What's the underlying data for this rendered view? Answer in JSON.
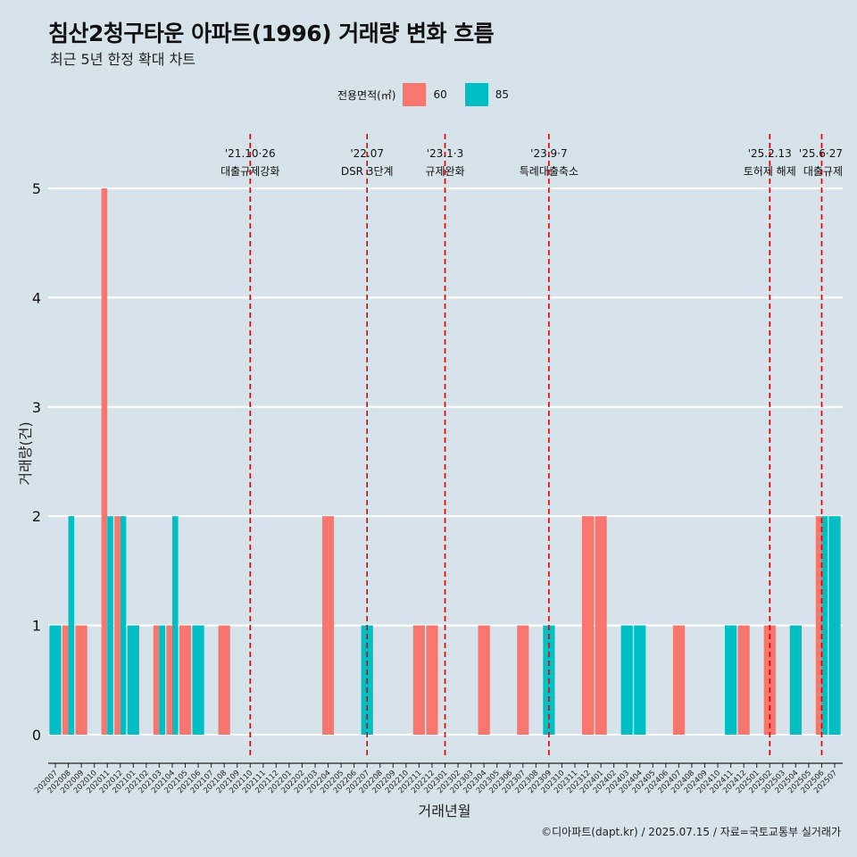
{
  "chart_data": {
    "type": "bar",
    "title": "침산2청구타운 아파트(1996) 거래량 변화 흐름",
    "subtitle": "최근 5년 한정 확대 차트",
    "xlabel": "거래년월",
    "ylabel": "거래량(건)",
    "ylim": [
      0,
      5
    ],
    "yticks": [
      0,
      1,
      2,
      3,
      4,
      5
    ],
    "grid": true,
    "legend": {
      "title": "전용면적(㎡)",
      "position": "top"
    },
    "categories": [
      "202007",
      "202008",
      "202009",
      "202010",
      "202011",
      "202012",
      "202101",
      "202102",
      "202103",
      "202104",
      "202105",
      "202106",
      "202107",
      "202108",
      "202109",
      "202110",
      "202111",
      "202112",
      "202201",
      "202202",
      "202203",
      "202204",
      "202205",
      "202206",
      "202207",
      "202208",
      "202209",
      "202210",
      "202211",
      "202212",
      "202301",
      "202302",
      "202303",
      "202304",
      "202305",
      "202306",
      "202307",
      "202308",
      "202309",
      "202310",
      "202311",
      "202312",
      "202401",
      "202402",
      "202403",
      "202404",
      "202405",
      "202406",
      "202407",
      "202408",
      "202409",
      "202410",
      "202411",
      "202412",
      "202501",
      "202502",
      "202503",
      "202504",
      "202505",
      "202506",
      "202507"
    ],
    "series": [
      {
        "name": "60",
        "color": "#f8766d",
        "values": [
          0,
          1,
          1,
          0,
          5,
          2,
          0,
          0,
          1,
          1,
          1,
          0,
          0,
          1,
          0,
          0,
          0,
          0,
          0,
          0,
          0,
          2,
          0,
          0,
          0,
          0,
          0,
          0,
          1,
          1,
          0,
          0,
          0,
          1,
          0,
          0,
          1,
          0,
          0,
          0,
          0,
          2,
          2,
          0,
          0,
          0,
          0,
          0,
          1,
          0,
          0,
          0,
          0,
          1,
          0,
          1,
          0,
          0,
          0,
          2,
          0
        ]
      },
      {
        "name": "85",
        "color": "#00bfc4",
        "values": [
          1,
          2,
          0,
          0,
          2,
          2,
          1,
          0,
          1,
          2,
          0,
          1,
          0,
          0,
          0,
          0,
          0,
          0,
          0,
          0,
          0,
          0,
          0,
          0,
          1,
          0,
          0,
          0,
          0,
          0,
          0,
          0,
          0,
          0,
          0,
          0,
          0,
          0,
          1,
          0,
          0,
          0,
          0,
          0,
          1,
          1,
          0,
          0,
          0,
          0,
          0,
          0,
          1,
          0,
          0,
          0,
          0,
          1,
          0,
          2,
          2
        ]
      }
    ],
    "annotations": [
      {
        "date": "'21.10·26",
        "label": "대출규제강화",
        "month": "202110"
      },
      {
        "date": "'22.07",
        "label": "DSR 3단계",
        "month": "202207"
      },
      {
        "date": "'23.1·3",
        "label": "규제완화",
        "month": "202301"
      },
      {
        "date": "'23.9·7",
        "label": "특례대출축소",
        "month": "202309"
      },
      {
        "date": "'25.2.13",
        "label": "토허제 해제",
        "month": "202502"
      },
      {
        "date": "'25.6·27",
        "label": "대출규제",
        "month": "202506"
      }
    ],
    "caption": "©디아파트(dapt.kr) / 2025.07.15 / 자료=국토교통부 실거래가"
  }
}
